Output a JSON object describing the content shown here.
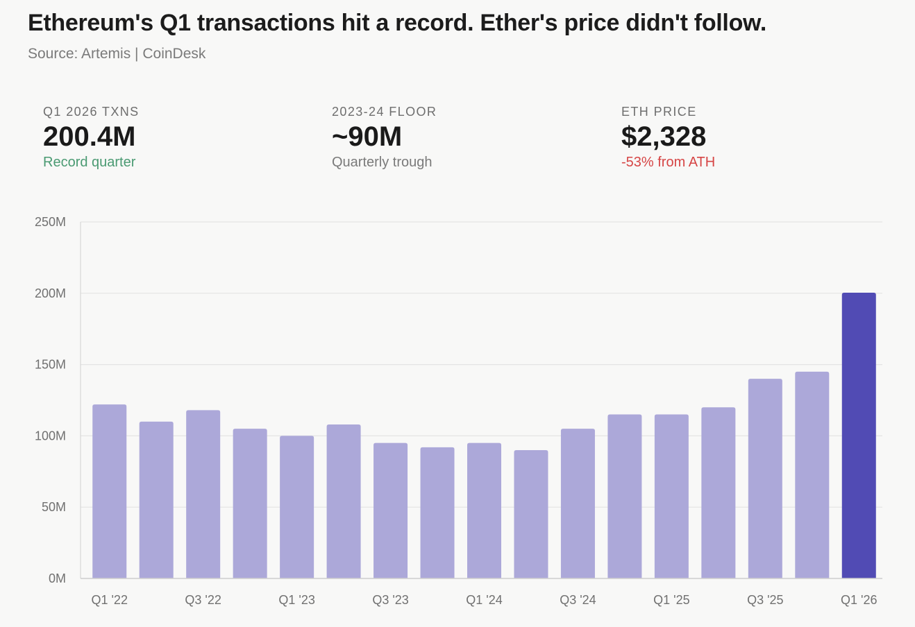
{
  "header": {
    "title": "Ethereum's Q1 transactions hit a record. Ether's price didn't follow.",
    "subtitle": "Source: Artemis | CoinDesk"
  },
  "kpis": [
    {
      "label": "Q1 2026 TXNS",
      "value": "200.4M",
      "note": "Record quarter",
      "note_color": "#4a9a72"
    },
    {
      "label": "2023-24 FLOOR",
      "value": "~90M",
      "note": "Quarterly trough",
      "note_color": "#7a7a7a"
    },
    {
      "label": "ETH PRICE",
      "value": "$2,328",
      "note": "-53% from ATH",
      "note_color": "#d64545"
    }
  ],
  "colors": {
    "bar": "#aca8d9",
    "highlight_bar": "#514bb4",
    "grid": "#e4e4e4",
    "tick_text": "#707070"
  },
  "chart_data": {
    "type": "bar",
    "categories": [
      "Q1 '22",
      "Q2 '22",
      "Q3 '22",
      "Q4 '22",
      "Q1 '23",
      "Q2 '23",
      "Q3 '23",
      "Q4 '23",
      "Q1 '24",
      "Q2 '24",
      "Q3 '24",
      "Q4 '24",
      "Q1 '25",
      "Q2 '25",
      "Q3 '25",
      "Q4 '25",
      "Q1 '26"
    ],
    "x_tick_labels": [
      "Q1 '22",
      "",
      "Q3 '22",
      "",
      "Q1 '23",
      "",
      "Q3 '23",
      "",
      "Q1 '24",
      "",
      "Q3 '24",
      "",
      "Q1 '25",
      "",
      "Q3 '25",
      "",
      "Q1 '26"
    ],
    "values": [
      122,
      110,
      118,
      105,
      100,
      108,
      95,
      92,
      95,
      90,
      105,
      115,
      115,
      120,
      140,
      145,
      200.4
    ],
    "value_unit": "M",
    "highlight_index": 16,
    "ylim": [
      0,
      250
    ],
    "y_ticks": [
      0,
      50,
      100,
      150,
      200,
      250
    ],
    "y_tick_labels": [
      "0M",
      "50M",
      "100M",
      "150M",
      "200M",
      "250M"
    ],
    "grid": true,
    "title": "",
    "xlabel": "",
    "ylabel": ""
  }
}
